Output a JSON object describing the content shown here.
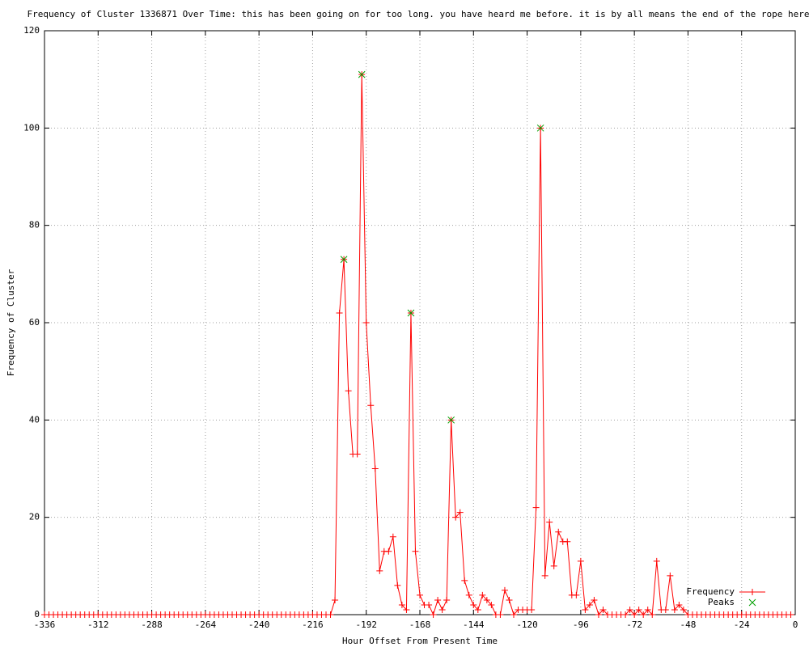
{
  "chart_data": {
    "type": "line",
    "title": "Frequency of Cluster 1336871 Over Time: this has been going on for too long. you have heard me before. it is by all means the end of the rope here",
    "x_label": "Hour Offset From Present Time",
    "y_label": "Frequency of Cluster",
    "xlim": [
      -336,
      0
    ],
    "ylim": [
      0,
      120
    ],
    "xticks": [
      -336,
      -312,
      -288,
      -264,
      -240,
      -216,
      -192,
      -168,
      -144,
      -120,
      -96,
      -72,
      -48,
      -24,
      0
    ],
    "yticks": [
      0,
      20,
      40,
      60,
      80,
      100,
      120
    ],
    "grid": true,
    "legend": "lower right",
    "series": [
      {
        "name": "Frequency",
        "color": "#ff0000",
        "marker": "plus",
        "line": true,
        "x": [
          -336,
          -334,
          -332,
          -330,
          -328,
          -326,
          -324,
          -322,
          -320,
          -318,
          -316,
          -314,
          -312,
          -310,
          -308,
          -306,
          -304,
          -302,
          -300,
          -298,
          -296,
          -294,
          -292,
          -290,
          -288,
          -286,
          -284,
          -282,
          -280,
          -278,
          -276,
          -274,
          -272,
          -270,
          -268,
          -266,
          -264,
          -262,
          -260,
          -258,
          -256,
          -254,
          -252,
          -250,
          -248,
          -246,
          -244,
          -242,
          -240,
          -238,
          -236,
          -234,
          -232,
          -230,
          -228,
          -226,
          -224,
          -222,
          -220,
          -218,
          -216,
          -214,
          -212,
          -210,
          -208,
          -206,
          -204,
          -202,
          -200,
          -198,
          -196,
          -194,
          -192,
          -190,
          -188,
          -186,
          -184,
          -182,
          -180,
          -178,
          -176,
          -174,
          -172,
          -170,
          -168,
          -166,
          -164,
          -162,
          -160,
          -158,
          -156,
          -154,
          -152,
          -150,
          -148,
          -146,
          -144,
          -142,
          -140,
          -138,
          -136,
          -134,
          -132,
          -130,
          -128,
          -126,
          -124,
          -122,
          -120,
          -118,
          -116,
          -114,
          -112,
          -110,
          -108,
          -106,
          -104,
          -102,
          -100,
          -98,
          -96,
          -94,
          -92,
          -90,
          -88,
          -86,
          -84,
          -82,
          -80,
          -78,
          -76,
          -74,
          -72,
          -70,
          -68,
          -66,
          -64,
          -62,
          -60,
          -58,
          -56,
          -54,
          -52,
          -50,
          -48,
          -46,
          -44,
          -42,
          -40,
          -38,
          -36,
          -34,
          -32,
          -30,
          -28,
          -26,
          -24,
          -22,
          -20,
          -18,
          -16,
          -14,
          -12,
          -10,
          -8,
          -6,
          -4,
          -2
        ],
        "values": [
          0,
          0,
          0,
          0,
          0,
          0,
          0,
          0,
          0,
          0,
          0,
          0,
          0,
          0,
          0,
          0,
          0,
          0,
          0,
          0,
          0,
          0,
          0,
          0,
          0,
          0,
          0,
          0,
          0,
          0,
          0,
          0,
          0,
          0,
          0,
          0,
          0,
          0,
          0,
          0,
          0,
          0,
          0,
          0,
          0,
          0,
          0,
          0,
          0,
          0,
          0,
          0,
          0,
          0,
          0,
          0,
          0,
          0,
          0,
          0,
          0,
          0,
          0,
          0,
          0,
          3,
          62,
          73,
          46,
          33,
          33,
          111,
          60,
          43,
          30,
          9,
          13,
          13,
          16,
          6,
          2,
          1,
          62,
          13,
          4,
          2,
          2,
          0,
          3,
          1,
          3,
          40,
          20,
          21,
          7,
          4,
          2,
          1,
          4,
          3,
          2,
          0,
          0,
          5,
          3,
          0,
          1,
          1,
          1,
          1,
          22,
          100,
          8,
          19,
          10,
          17,
          15,
          15,
          4,
          4,
          11,
          1,
          2,
          3,
          0,
          1,
          0,
          0,
          0,
          0,
          0,
          1,
          0,
          1,
          0,
          1,
          0,
          11,
          1,
          1,
          8,
          1,
          2,
          1,
          0,
          0,
          0,
          0,
          0,
          0,
          0,
          0,
          0,
          0,
          0,
          0,
          0,
          0,
          0,
          0,
          0,
          0,
          0,
          0,
          0,
          0,
          0,
          0
        ]
      },
      {
        "name": "Peaks",
        "color": "#00a000",
        "marker": "cross",
        "line": false,
        "x": [
          -202,
          -194,
          -172,
          -154,
          -114
        ],
        "values": [
          73,
          111,
          62,
          40,
          100
        ]
      }
    ]
  }
}
